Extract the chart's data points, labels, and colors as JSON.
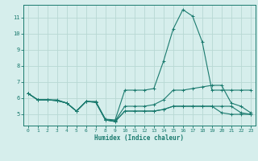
{
  "x": [
    0,
    1,
    2,
    3,
    4,
    5,
    6,
    7,
    8,
    9,
    10,
    11,
    12,
    13,
    14,
    15,
    16,
    17,
    18,
    19,
    20,
    21,
    22,
    23
  ],
  "line1": [
    6.3,
    5.9,
    5.9,
    5.9,
    5.7,
    5.2,
    5.8,
    5.8,
    4.7,
    4.65,
    6.5,
    6.5,
    6.5,
    6.6,
    8.3,
    10.3,
    11.5,
    11.1,
    9.5,
    6.5,
    6.5,
    6.5,
    6.5,
    6.5
  ],
  "line2": [
    6.3,
    5.9,
    5.9,
    5.85,
    5.7,
    5.2,
    5.8,
    5.75,
    4.65,
    4.6,
    5.5,
    5.5,
    5.5,
    5.6,
    5.9,
    6.5,
    6.5,
    6.6,
    6.7,
    6.8,
    6.8,
    5.7,
    5.5,
    5.1
  ],
  "line3": [
    6.3,
    5.9,
    5.9,
    5.85,
    5.7,
    5.2,
    5.8,
    5.75,
    4.65,
    4.55,
    5.2,
    5.2,
    5.2,
    5.2,
    5.3,
    5.5,
    5.5,
    5.5,
    5.5,
    5.5,
    5.5,
    5.5,
    5.1,
    5.0
  ],
  "line4": [
    6.3,
    5.9,
    5.9,
    5.85,
    5.7,
    5.2,
    5.8,
    5.75,
    4.65,
    4.55,
    5.2,
    5.2,
    5.2,
    5.2,
    5.3,
    5.5,
    5.5,
    5.5,
    5.5,
    5.5,
    5.1,
    5.0,
    5.0,
    5.0
  ],
  "line_color": "#1a7a6e",
  "bg_color": "#d6eeec",
  "grid_color": "#b8d8d4",
  "xlabel": "Humidex (Indice chaleur)",
  "xlim": [
    -0.5,
    23.5
  ],
  "ylim": [
    4.3,
    11.8
  ],
  "yticks": [
    5,
    6,
    7,
    8,
    9,
    10,
    11
  ],
  "xticks": [
    0,
    1,
    2,
    3,
    4,
    5,
    6,
    7,
    8,
    9,
    10,
    11,
    12,
    13,
    14,
    15,
    16,
    17,
    18,
    19,
    20,
    21,
    22,
    23
  ]
}
